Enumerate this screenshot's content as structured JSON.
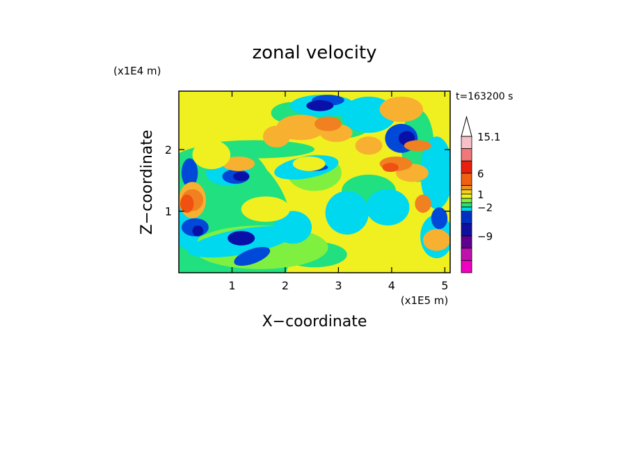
{
  "chart_data": {
    "type": "heatmap",
    "title": "zonal velocity",
    "xlabel": "X−coordinate",
    "ylabel": "Z−coordinate",
    "x_scale_note": "(x1E5 m)",
    "y_scale_note": "(x1E4 m)",
    "time_label": "t=163200 s",
    "xlim": [
      0,
      5.1
    ],
    "ylim": [
      0,
      2.95
    ],
    "x_ticks": [
      "1",
      "2",
      "3",
      "4",
      "5"
    ],
    "x_tick_values": [
      1,
      2,
      3,
      4,
      5
    ],
    "y_ticks": [
      "1",
      "2"
    ],
    "y_tick_values": [
      1,
      2
    ],
    "colorbar": {
      "labels": [
        "15.1",
        "6",
        "1",
        "−2",
        "−9"
      ],
      "label_levels": [
        15.1,
        6,
        1,
        -2,
        -9
      ],
      "extend_max_arrow": true,
      "levels_high_to_low": [
        15.1,
        12,
        9,
        6,
        4,
        2,
        1,
        0,
        -1,
        -2,
        -4,
        -6,
        -9,
        -12,
        -15
      ],
      "colors_high_to_low": [
        "#f7c0c8",
        "#f07878",
        "#e82010",
        "#f06010",
        "#f09020",
        "#f0d020",
        "#f0f020",
        "#80f040",
        "#20e080",
        "#00d8f0",
        "#0030c0",
        "#1010a0",
        "#600090",
        "#c010b0",
        "#f000c0"
      ]
    },
    "palette": {
      "deep_blue": "#0810a8",
      "blue": "#0048d8",
      "cyan": "#00d8f0",
      "green": "#20e080",
      "light_green": "#80f040",
      "yellow": "#f0f020",
      "gold": "#f0d020",
      "orange_light": "#f8b030",
      "orange": "#f08020",
      "red_orange": "#f05010",
      "magenta": "#c010b0"
    }
  }
}
